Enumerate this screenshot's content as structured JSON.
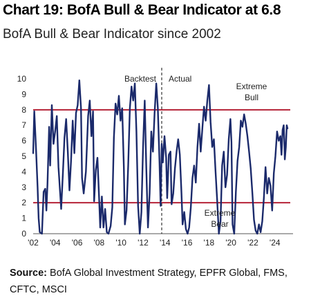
{
  "title": "Chart 19: BofA Bull & Bear Indicator at 6.8",
  "subtitle": "BofA Bull & Bear Indicator since 2002",
  "source": {
    "label": "Source:",
    "text": "BofA Global Investment Strategy, EPFR Global, FMS, CFTC, MSCI"
  },
  "chart_data": {
    "type": "line",
    "xlim": [
      2002,
      2025.4
    ],
    "ylim": [
      0,
      10
    ],
    "grid": false,
    "x_tick_labels": [
      "'02",
      "'04",
      "'06",
      "'08",
      "'10",
      "'12",
      "'14",
      "'16",
      "'18",
      "'20",
      "'22",
      "'24"
    ],
    "x_tick_values": [
      2002,
      2004,
      2006,
      2008,
      2010,
      2012,
      2014,
      2016,
      2018,
      2020,
      2022,
      2024
    ],
    "y_ticks": [
      0,
      1,
      2,
      3,
      4,
      5,
      6,
      7,
      8,
      9,
      10
    ],
    "colors": {
      "series": "#1b2a6b",
      "threshold": "#b0142a",
      "divider": "#333333"
    },
    "thresholds": [
      {
        "value": 8,
        "label": "Extreme Bull"
      },
      {
        "value": 2,
        "label": "Extreme Bear"
      }
    ],
    "divider": {
      "x": 2013.7,
      "left_label": "Backtest",
      "right_label": "Actual"
    },
    "series": [
      {
        "points": [
          [
            2002.0,
            5.2
          ],
          [
            2002.1,
            7.9
          ],
          [
            2002.25,
            5.6
          ],
          [
            2002.4,
            3.0
          ],
          [
            2002.5,
            1.0
          ],
          [
            2002.6,
            0.1
          ],
          [
            2002.8,
            0.0
          ],
          [
            2002.95,
            2.7
          ],
          [
            2003.1,
            2.9
          ],
          [
            2003.2,
            1.5
          ],
          [
            2003.3,
            3.2
          ],
          [
            2003.45,
            6.9
          ],
          [
            2003.55,
            4.4
          ],
          [
            2003.7,
            8.3
          ],
          [
            2003.85,
            5.8
          ],
          [
            2004.0,
            6.6
          ],
          [
            2004.15,
            7.6
          ],
          [
            2004.3,
            4.3
          ],
          [
            2004.4,
            3.2
          ],
          [
            2004.55,
            1.6
          ],
          [
            2004.7,
            3.8
          ],
          [
            2004.85,
            6.2
          ],
          [
            2005.0,
            7.4
          ],
          [
            2005.15,
            5.3
          ],
          [
            2005.3,
            2.8
          ],
          [
            2005.45,
            4.7
          ],
          [
            2005.6,
            7.3
          ],
          [
            2005.75,
            5.2
          ],
          [
            2005.9,
            7.8
          ],
          [
            2006.05,
            8.3
          ],
          [
            2006.2,
            9.9
          ],
          [
            2006.35,
            8.1
          ],
          [
            2006.45,
            3.6
          ],
          [
            2006.6,
            2.6
          ],
          [
            2006.8,
            4.0
          ],
          [
            2007.0,
            7.6
          ],
          [
            2007.15,
            8.6
          ],
          [
            2007.3,
            6.3
          ],
          [
            2007.45,
            7.9
          ],
          [
            2007.55,
            2.1
          ],
          [
            2007.7,
            4.1
          ],
          [
            2007.85,
            4.9
          ],
          [
            2008.0,
            2.3
          ],
          [
            2008.1,
            0.4
          ],
          [
            2008.25,
            2.4
          ],
          [
            2008.4,
            0.4
          ],
          [
            2008.55,
            1.6
          ],
          [
            2008.7,
            0.1
          ],
          [
            2008.85,
            0.0
          ],
          [
            2009.05,
            0.5
          ],
          [
            2009.2,
            1.7
          ],
          [
            2009.35,
            6.2
          ],
          [
            2009.5,
            8.4
          ],
          [
            2009.65,
            7.7
          ],
          [
            2009.8,
            8.9
          ],
          [
            2009.95,
            7.3
          ],
          [
            2010.1,
            8.1
          ],
          [
            2010.25,
            4.3
          ],
          [
            2010.35,
            0.6
          ],
          [
            2010.5,
            1.5
          ],
          [
            2010.65,
            4.4
          ],
          [
            2010.8,
            8.1
          ],
          [
            2010.95,
            9.5
          ],
          [
            2011.1,
            8.6
          ],
          [
            2011.25,
            9.7
          ],
          [
            2011.4,
            6.6
          ],
          [
            2011.55,
            1.8
          ],
          [
            2011.7,
            0.0
          ],
          [
            2011.85,
            1.4
          ],
          [
            2012.0,
            5.6
          ],
          [
            2012.15,
            8.6
          ],
          [
            2012.3,
            4.2
          ],
          [
            2012.45,
            0.4
          ],
          [
            2012.6,
            2.6
          ],
          [
            2012.75,
            6.6
          ],
          [
            2012.9,
            5.3
          ],
          [
            2013.05,
            7.8
          ],
          [
            2013.2,
            9.7
          ],
          [
            2013.35,
            8.1
          ],
          [
            2013.5,
            4.6
          ],
          [
            2013.6,
            1.8
          ],
          [
            2013.7,
            5.8
          ],
          [
            2013.8,
            4.6
          ],
          [
            2013.95,
            6.3
          ],
          [
            2014.1,
            4.9
          ],
          [
            2014.2,
            2.3
          ],
          [
            2014.35,
            5.1
          ],
          [
            2014.5,
            5.3
          ],
          [
            2014.6,
            1.9
          ],
          [
            2014.75,
            2.6
          ],
          [
            2014.9,
            4.2
          ],
          [
            2015.05,
            5.3
          ],
          [
            2015.2,
            6.1
          ],
          [
            2015.35,
            5.1
          ],
          [
            2015.5,
            2.6
          ],
          [
            2015.6,
            0.6
          ],
          [
            2015.75,
            1.4
          ],
          [
            2015.9,
            0.3
          ],
          [
            2016.05,
            0.0
          ],
          [
            2016.2,
            0.4
          ],
          [
            2016.35,
            1.7
          ],
          [
            2016.5,
            3.6
          ],
          [
            2016.65,
            4.4
          ],
          [
            2016.8,
            3.3
          ],
          [
            2016.95,
            5.6
          ],
          [
            2017.1,
            7.1
          ],
          [
            2017.25,
            5.3
          ],
          [
            2017.4,
            6.8
          ],
          [
            2017.55,
            8.2
          ],
          [
            2017.7,
            7.3
          ],
          [
            2017.85,
            8.6
          ],
          [
            2018.0,
            9.6
          ],
          [
            2018.15,
            7.2
          ],
          [
            2018.3,
            5.6
          ],
          [
            2018.45,
            6.1
          ],
          [
            2018.6,
            4.0
          ],
          [
            2018.75,
            2.1
          ],
          [
            2018.9,
            0.0
          ],
          [
            2019.05,
            0.8
          ],
          [
            2019.2,
            4.4
          ],
          [
            2019.35,
            5.3
          ],
          [
            2019.5,
            3.0
          ],
          [
            2019.65,
            3.8
          ],
          [
            2019.8,
            6.1
          ],
          [
            2019.95,
            7.4
          ],
          [
            2020.05,
            5.9
          ],
          [
            2020.15,
            0.6
          ],
          [
            2020.3,
            0.0
          ],
          [
            2020.45,
            2.7
          ],
          [
            2020.6,
            4.7
          ],
          [
            2020.75,
            5.6
          ],
          [
            2020.9,
            7.3
          ],
          [
            2021.05,
            6.9
          ],
          [
            2021.2,
            7.7
          ],
          [
            2021.35,
            7.1
          ],
          [
            2021.5,
            6.3
          ],
          [
            2021.65,
            5.3
          ],
          [
            2021.8,
            4.2
          ],
          [
            2021.95,
            2.6
          ],
          [
            2022.1,
            0.9
          ],
          [
            2022.25,
            0.2
          ],
          [
            2022.4,
            0.0
          ],
          [
            2022.55,
            0.6
          ],
          [
            2022.7,
            0.1
          ],
          [
            2022.85,
            0.8
          ],
          [
            2023.0,
            2.3
          ],
          [
            2023.15,
            4.3
          ],
          [
            2023.3,
            2.6
          ],
          [
            2023.45,
            3.6
          ],
          [
            2023.6,
            3.1
          ],
          [
            2023.75,
            1.5
          ],
          [
            2023.9,
            3.9
          ],
          [
            2024.05,
            5.0
          ],
          [
            2024.2,
            6.6
          ],
          [
            2024.35,
            6.0
          ],
          [
            2024.5,
            6.3
          ],
          [
            2024.6,
            5.1
          ],
          [
            2024.7,
            6.7
          ],
          [
            2024.8,
            7.0
          ],
          [
            2024.85,
            6.1
          ],
          [
            2024.9,
            4.8
          ],
          [
            2025.0,
            5.6
          ],
          [
            2025.08,
            7.0
          ],
          [
            2025.15,
            6.8
          ]
        ]
      }
    ]
  }
}
